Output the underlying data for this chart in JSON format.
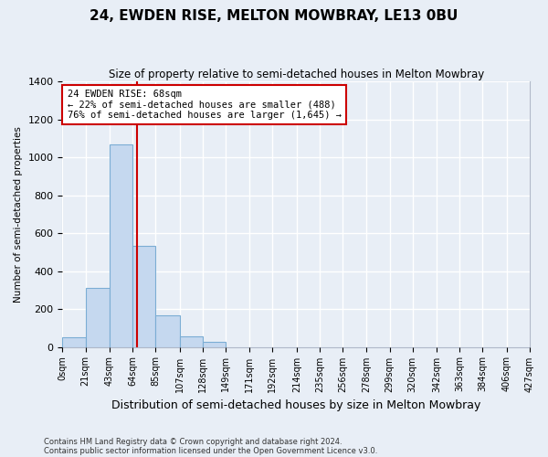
{
  "title": "24, EWDEN RISE, MELTON MOWBRAY, LE13 0BU",
  "subtitle": "Size of property relative to semi-detached houses in Melton Mowbray",
  "xlabel": "Distribution of semi-detached houses by size in Melton Mowbray",
  "ylabel": "Number of semi-detached properties",
  "footnote1": "Contains HM Land Registry data © Crown copyright and database right 2024.",
  "footnote2": "Contains public sector information licensed under the Open Government Licence v3.0.",
  "property_size": 68,
  "property_label": "24 EWDEN RISE: 68sqm",
  "pct_smaller": 22,
  "n_smaller": 488,
  "pct_larger": 76,
  "n_larger": 1645,
  "bin_edges": [
    0,
    21,
    43,
    64,
    85,
    107,
    128,
    149,
    171,
    192,
    214,
    235,
    256,
    278,
    299,
    320,
    342,
    363,
    384,
    406,
    427
  ],
  "bin_labels": [
    "0sqm",
    "21sqm",
    "43sqm",
    "64sqm",
    "85sqm",
    "107sqm",
    "128sqm",
    "149sqm",
    "171sqm",
    "192sqm",
    "214sqm",
    "235sqm",
    "256sqm",
    "278sqm",
    "299sqm",
    "320sqm",
    "342sqm",
    "363sqm",
    "384sqm",
    "406sqm",
    "427sqm"
  ],
  "counts": [
    50,
    310,
    1070,
    535,
    165,
    55,
    25,
    0,
    0,
    0,
    0,
    0,
    0,
    0,
    0,
    0,
    0,
    0,
    0,
    0
  ],
  "bar_color": "#c5d8ef",
  "bar_edge_color": "#7badd4",
  "vline_color": "#cc0000",
  "annotation_box_color": "#ffffff",
  "annotation_box_edge": "#cc0000",
  "bg_color": "#e8eef6",
  "grid_color": "#ffffff",
  "ylim": [
    0,
    1400
  ],
  "yticks": [
    0,
    200,
    400,
    600,
    800,
    1000,
    1200,
    1400
  ]
}
